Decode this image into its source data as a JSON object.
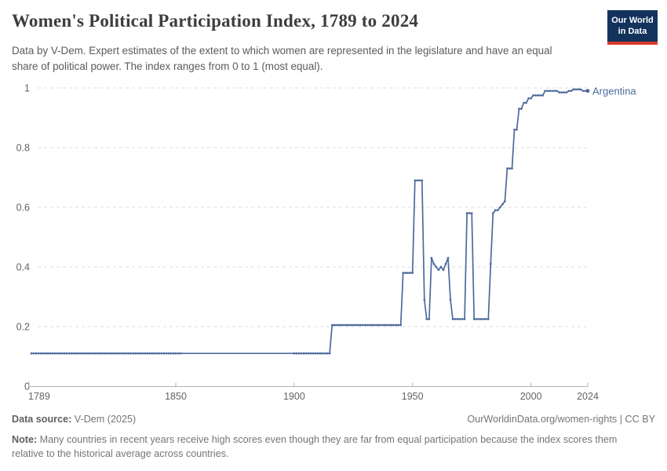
{
  "header": {
    "title": "Women's Political Participation Index, 1789 to 2024",
    "subtitle": "Data by V-Dem. Expert estimates of the extent to which women are represented in the legislature and have an equal share of political power. The index ranges from 0 to 1 (most equal).",
    "logo": {
      "line1": "Our World",
      "line2": "in Data"
    }
  },
  "footer": {
    "source_label": "Data source:",
    "source_value": " V-Dem (2025)",
    "rights": "OurWorldinData.org/women-rights | CC BY",
    "note_label": "Note:",
    "note_value": " Many countries in recent years receive high scores even though they are far from equal participation because the index scores them relative to the historical average across countries."
  },
  "colors": {
    "series": "#4c6a9c",
    "grid": "#dedede",
    "axis_line": "#b3b3b3",
    "axis_text": "#636363",
    "logo_bg": "#13335d",
    "logo_stripe": "#d93b2b"
  },
  "chart_data": {
    "type": "line",
    "title": "Women's Political Participation Index, 1789 to 2024",
    "xlabel": "",
    "ylabel": "",
    "xlim": [
      1789,
      2024
    ],
    "ylim": [
      0,
      1
    ],
    "xticks": [
      1789,
      1850,
      1900,
      1950,
      2000,
      2024
    ],
    "yticks": [
      0,
      0.2,
      0.4,
      0.6,
      0.8,
      1
    ],
    "ytick_labels": [
      "0",
      "0.2",
      "0.4",
      "0.6",
      "0.8",
      "1"
    ],
    "grid": "dashed-horizontal",
    "legend_position": "end-of-line-label",
    "marker_gap_years": [
      1853,
      1899
    ],
    "series": [
      {
        "name": "Argentina",
        "color": "#4c6a9c",
        "points": [
          [
            1789,
            0.11
          ],
          [
            1915,
            0.11
          ],
          [
            1916,
            0.205
          ],
          [
            1945,
            0.205
          ],
          [
            1946,
            0.38
          ],
          [
            1950,
            0.38
          ],
          [
            1951,
            0.69
          ],
          [
            1954,
            0.69
          ],
          [
            1955,
            0.29
          ],
          [
            1956,
            0.225
          ],
          [
            1957,
            0.225
          ],
          [
            1958,
            0.43
          ],
          [
            1959,
            0.41
          ],
          [
            1960,
            0.4
          ],
          [
            1961,
            0.39
          ],
          [
            1962,
            0.4
          ],
          [
            1963,
            0.39
          ],
          [
            1964,
            0.41
          ],
          [
            1965,
            0.43
          ],
          [
            1966,
            0.29
          ],
          [
            1967,
            0.225
          ],
          [
            1972,
            0.225
          ],
          [
            1973,
            0.58
          ],
          [
            1975,
            0.58
          ],
          [
            1976,
            0.225
          ],
          [
            1982,
            0.225
          ],
          [
            1983,
            0.41
          ],
          [
            1984,
            0.58
          ],
          [
            1985,
            0.59
          ],
          [
            1986,
            0.59
          ],
          [
            1987,
            0.6
          ],
          [
            1988,
            0.61
          ],
          [
            1989,
            0.62
          ],
          [
            1990,
            0.73
          ],
          [
            1992,
            0.73
          ],
          [
            1993,
            0.86
          ],
          [
            1994,
            0.86
          ],
          [
            1995,
            0.93
          ],
          [
            1996,
            0.93
          ],
          [
            1997,
            0.95
          ],
          [
            1998,
            0.95
          ],
          [
            1999,
            0.965
          ],
          [
            2000,
            0.965
          ],
          [
            2001,
            0.975
          ],
          [
            2005,
            0.975
          ],
          [
            2006,
            0.99
          ],
          [
            2011,
            0.99
          ],
          [
            2012,
            0.985
          ],
          [
            2015,
            0.985
          ],
          [
            2016,
            0.99
          ],
          [
            2017,
            0.99
          ],
          [
            2018,
            0.995
          ],
          [
            2021,
            0.995
          ],
          [
            2022,
            0.99
          ],
          [
            2024,
            0.99
          ]
        ]
      }
    ]
  }
}
